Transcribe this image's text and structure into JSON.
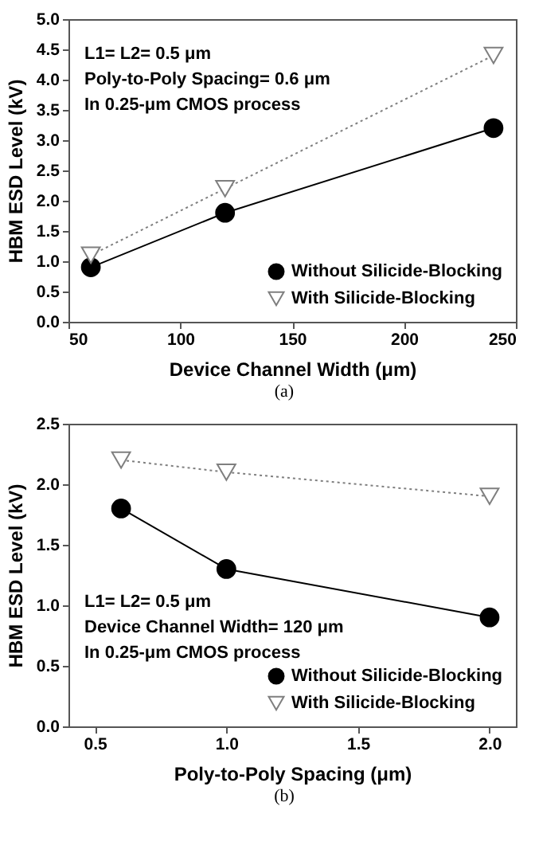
{
  "chart_data": [
    {
      "type": "line",
      "xlabel": "Device Channel Width (μm)",
      "ylabel": "HBM ESD Level (kV)",
      "x": [
        60,
        120,
        240
      ],
      "xlim": [
        50,
        250
      ],
      "xticks": [
        50,
        100,
        150,
        200,
        250
      ],
      "ylim": [
        0,
        5
      ],
      "yticks": [
        {
          "value": 0,
          "label": "0.0"
        },
        0.5,
        {
          "value": 1,
          "label": "1.0"
        },
        1.5,
        {
          "value": 2,
          "label": "2.0"
        },
        2.5,
        {
          "value": 3,
          "label": "3.0"
        },
        3.5,
        {
          "value": 4,
          "label": "4.0"
        },
        4.5,
        {
          "value": 5,
          "label": "5.0"
        }
      ],
      "legend": "bottom right",
      "grid": false,
      "series": [
        {
          "name": "Without Silicide-Blocking",
          "color": "#000000",
          "values": [
            0.9,
            1.8,
            3.2
          ],
          "marker": "circle",
          "line_style": "solid"
        },
        {
          "name": "With Silicide-Blocking",
          "color": "#7f7f7f",
          "values": [
            1.1,
            2.2,
            4.4
          ],
          "marker": "triangle",
          "line_style": "dotted"
        }
      ],
      "annotations": [
        "L1= L2= 0.5 μm",
        "Poly-to-Poly Spacing= 0.6 μm",
        "In 0.25-μm CMOS process",
        "(a)"
      ]
    },
    {
      "type": "line",
      "xlabel": "Poly-to-Poly Spacing (μm)",
      "ylabel": "HBM ESD Level (kV)",
      "x": [
        0.6,
        1.0,
        2.0
      ],
      "xlim": [
        0.4,
        2.1
      ],
      "xticks": [
        0.5,
        {
          "value": 1,
          "label": "1.0"
        },
        1.5,
        {
          "value": 2,
          "label": "2.0"
        }
      ],
      "ylim": [
        0,
        2.5
      ],
      "yticks": [
        {
          "value": 0,
          "label": "0.0"
        },
        0.5,
        {
          "value": 1,
          "label": "1.0"
        },
        1.5,
        {
          "value": 2,
          "label": "2.0"
        },
        2.5
      ],
      "legend": "bottom right",
      "grid": false,
      "series": [
        {
          "name": "Without Silicide-Blocking",
          "color": "#000000",
          "values": [
            1.8,
            1.3,
            0.9
          ],
          "marker": "circle",
          "line_style": "solid"
        },
        {
          "name": "With Silicide-Blocking",
          "color": "#7f7f7f",
          "values": [
            2.2,
            2.1,
            1.9
          ],
          "marker": "triangle",
          "line_style": "dotted"
        }
      ],
      "annotations": [
        "L1= L2= 0.5 μm",
        "Device Channel Width= 120 μm",
        "In 0.25-μm CMOS process",
        "(b)"
      ]
    }
  ]
}
